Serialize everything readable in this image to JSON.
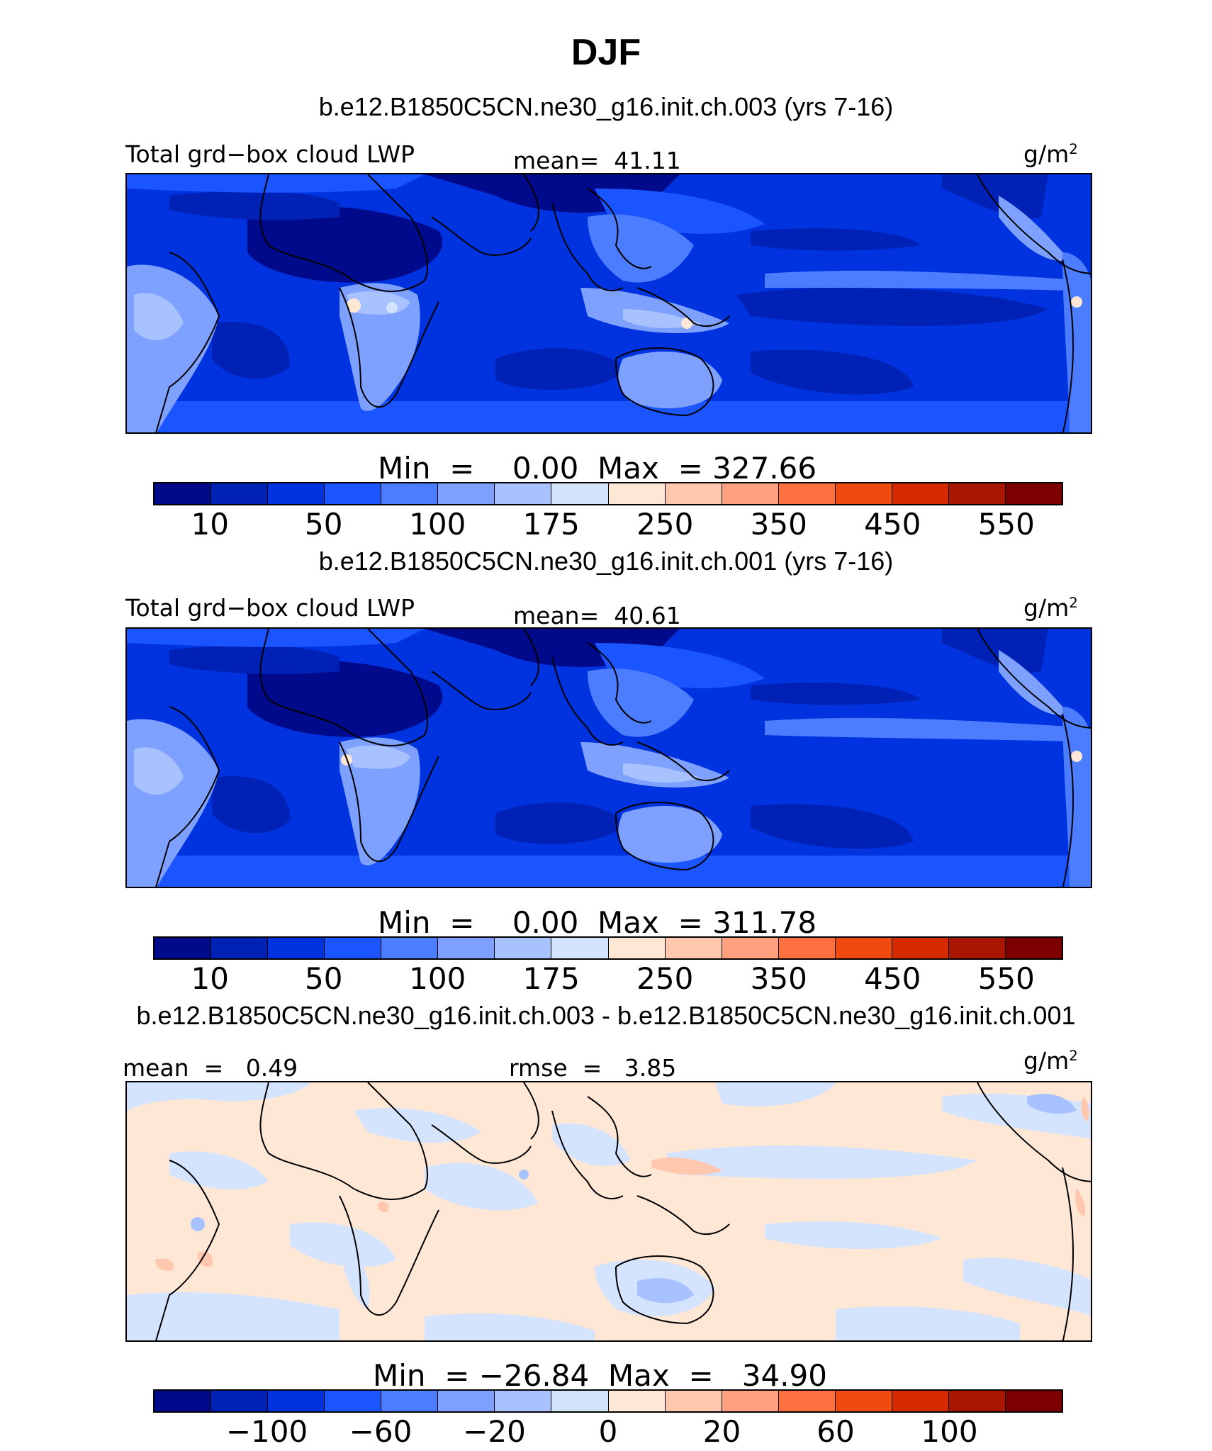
{
  "title": "DJF",
  "colors": {
    "abs_scale": [
      "#000a8a",
      "#0021b5",
      "#0033e0",
      "#1a55ff",
      "#4d7dff",
      "#7ea1ff",
      "#a8c1ff",
      "#d4e4ff",
      "#ffe7d6",
      "#ffc7ad",
      "#ffa07e",
      "#ff7040",
      "#f04a10",
      "#d52a00",
      "#a81500",
      "#7d0000"
    ],
    "diff_scale": [
      "#000a8a",
      "#0021b5",
      "#0033e0",
      "#1a55ff",
      "#4d7dff",
      "#7ea1ff",
      "#a8c1ff",
      "#d4e4ff",
      "#ffe7d6",
      "#ffc7ad",
      "#ffa07e",
      "#ff7040",
      "#f04a10",
      "#d52a00",
      "#a81500",
      "#7d0000"
    ]
  },
  "panels": [
    {
      "case": "b.e12.B1850C5CN.ne30_g16.init.ch.003 (yrs 7-16)",
      "variable": "Total grd−box cloud LWP",
      "stat_label": "mean=",
      "stat_value": "41.11",
      "units": "g/m",
      "units_exp": "2",
      "min_label": "Min  =",
      "min_value": "0.00",
      "max_label": "Max  =",
      "max_value": "327.66",
      "ticks": [
        "10",
        "50",
        "100",
        "175",
        "250",
        "350",
        "450",
        "550"
      ]
    },
    {
      "case": "b.e12.B1850C5CN.ne30_g16.init.ch.001 (yrs 7-16)",
      "variable": "Total grd−box cloud LWP",
      "stat_label": "mean=",
      "stat_value": "40.61",
      "units": "g/m",
      "units_exp": "2",
      "min_label": "Min  =",
      "min_value": "0.00",
      "max_label": "Max  =",
      "max_value": "311.78",
      "ticks": [
        "10",
        "50",
        "100",
        "175",
        "250",
        "350",
        "450",
        "550"
      ]
    },
    {
      "case": "b.e12.B1850C5CN.ne30_g16.init.ch.003 - b.e12.B1850C5CN.ne30_g16.init.ch.001",
      "stat_label": "mean  =",
      "stat_value": "0.49",
      "rmse_label": "rmse  =",
      "rmse_value": "3.85",
      "units": "g/m",
      "units_exp": "2",
      "min_label": "Min  =",
      "min_value": "−26.84",
      "max_label": "Max  =",
      "max_value": "34.90",
      "ticks": [
        "−100",
        "−60",
        "−20",
        "0",
        "20",
        "60",
        "100"
      ]
    }
  ]
}
